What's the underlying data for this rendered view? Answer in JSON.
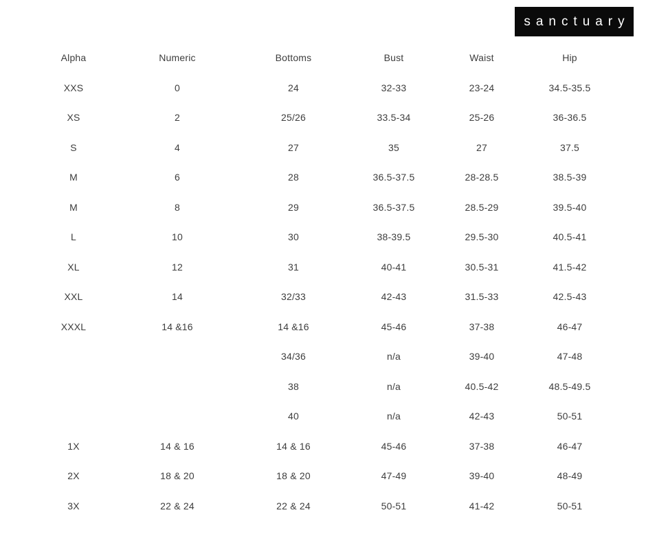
{
  "page": {
    "background": "#ffffff",
    "text_color": "#3d3d3d"
  },
  "brand": {
    "logo_text": "sanctuary",
    "logo_bg": "#0a0a0a",
    "logo_text_color": "#ffffff"
  },
  "size_chart": {
    "columns": [
      "Alpha",
      "Numeric",
      "Bottoms",
      "Bust",
      "Waist",
      "Hip"
    ],
    "rows": [
      [
        "XXS",
        "0",
        "24",
        "32-33",
        "23-24",
        "34.5-35.5"
      ],
      [
        "XS",
        "2",
        "25/26",
        "33.5-34",
        "25-26",
        "36-36.5"
      ],
      [
        "S",
        "4",
        "27",
        "35",
        "27",
        "37.5"
      ],
      [
        "M",
        "6",
        "28",
        "36.5-37.5",
        "28-28.5",
        "38.5-39"
      ],
      [
        "M",
        "8",
        "29",
        "36.5-37.5",
        "28.5-29",
        "39.5-40"
      ],
      [
        "L",
        "10",
        "30",
        "38-39.5",
        "29.5-30",
        "40.5-41"
      ],
      [
        "XL",
        "12",
        "31",
        "40-41",
        "30.5-31",
        "41.5-42"
      ],
      [
        "XXL",
        "14",
        "32/33",
        "42-43",
        "31.5-33",
        "42.5-43"
      ],
      [
        "XXXL",
        "14 &16",
        "14 &16",
        "45-46",
        "37-38",
        "46-47"
      ],
      [
        "",
        "",
        "34/36",
        "n/a",
        "39-40",
        "47-48"
      ],
      [
        "",
        "",
        "38",
        "n/a",
        "40.5-42",
        "48.5-49.5"
      ],
      [
        "",
        "",
        "40",
        "n/a",
        "42-43",
        "50-51"
      ],
      [
        "1X",
        "14 & 16",
        "14 & 16",
        "45-46",
        "37-38",
        "46-47"
      ],
      [
        "2X",
        "18 & 20",
        "18 & 20",
        "47-49",
        "39-40",
        "48-49"
      ],
      [
        "3X",
        "22 & 24",
        "22 & 24",
        "50-51",
        "41-42",
        "50-51"
      ]
    ]
  }
}
